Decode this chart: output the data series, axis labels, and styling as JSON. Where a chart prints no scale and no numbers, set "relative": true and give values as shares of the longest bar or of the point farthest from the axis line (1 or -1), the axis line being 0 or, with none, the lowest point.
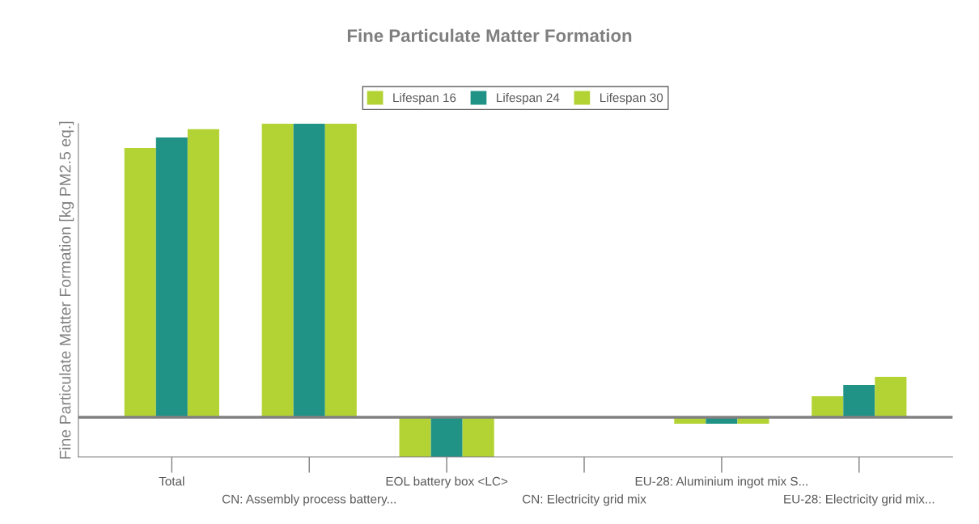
{
  "chart_data": {
    "type": "bar",
    "title": "Fine Particulate Matter Formation",
    "ylabel": "Fine Particulate Matter Formation [kg PM2.5 eq.]",
    "relative": true,
    "legend": "top",
    "categories": [
      "Total",
      "CN: Assembly process battery...",
      "EOL battery box <LC>",
      "CN: Electricity grid mix",
      "EU-28: Aluminium ingot mix S...",
      "EU-28: Electricity grid mix..."
    ],
    "series": [
      {
        "name": "Lifespan 16",
        "color": "#b3d334",
        "values": [
          0.917,
          1,
          -0.135,
          0,
          -0.022,
          0.072
        ]
      },
      {
        "name": "Lifespan 24",
        "color": "#219386",
        "values": [
          0.953,
          1,
          -0.135,
          0,
          -0.022,
          0.11
        ]
      },
      {
        "name": "Lifespan 30",
        "color": "#b3d334",
        "values": [
          0.981,
          1,
          -0.135,
          0,
          -0.022,
          0.138
        ]
      }
    ]
  }
}
